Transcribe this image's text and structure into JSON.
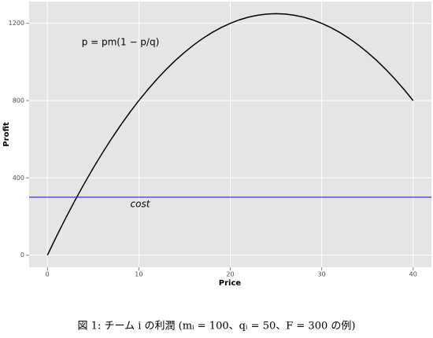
{
  "chart_data": {
    "type": "line",
    "x_label": "Price",
    "y_label": "Profit",
    "caption": "図 1: チーム i の利潤 (mᵢ = 100、qᵢ = 50、F = 300 の例)",
    "annotation": "p = pm(1 − p/q)",
    "x": [
      0,
      1,
      2,
      3,
      4,
      5,
      6,
      7,
      8,
      9,
      10,
      11,
      12,
      13,
      14,
      15,
      16,
      17,
      18,
      19,
      20,
      21,
      22,
      23,
      24,
      25,
      26,
      27,
      28,
      29,
      30,
      31,
      32,
      33,
      34,
      35,
      36,
      37,
      38,
      39,
      40
    ],
    "series": [
      {
        "color": "#000000",
        "values": [
          0,
          98,
          192,
          282,
          368,
          450,
          528,
          602,
          672,
          738,
          800,
          858,
          912,
          962,
          1008,
          1050,
          1088,
          1122,
          1152,
          1178,
          1200,
          1218,
          1232,
          1242,
          1248,
          1250,
          1248,
          1242,
          1232,
          1218,
          1200,
          1178,
          1152,
          1122,
          1088,
          1050,
          1008,
          962,
          912,
          858,
          800
        ]
      }
    ],
    "reference_line": {
      "value": 300,
      "label": "cost",
      "color": "#5a1ee0"
    },
    "xlim": [
      -2,
      42
    ],
    "xticks": [
      0,
      10,
      20,
      30,
      40
    ],
    "ylim": [
      -62.5,
      1312.5
    ],
    "yticks": [
      0,
      400,
      800,
      1200
    ],
    "grid": true,
    "background": "#e5e5e5"
  }
}
